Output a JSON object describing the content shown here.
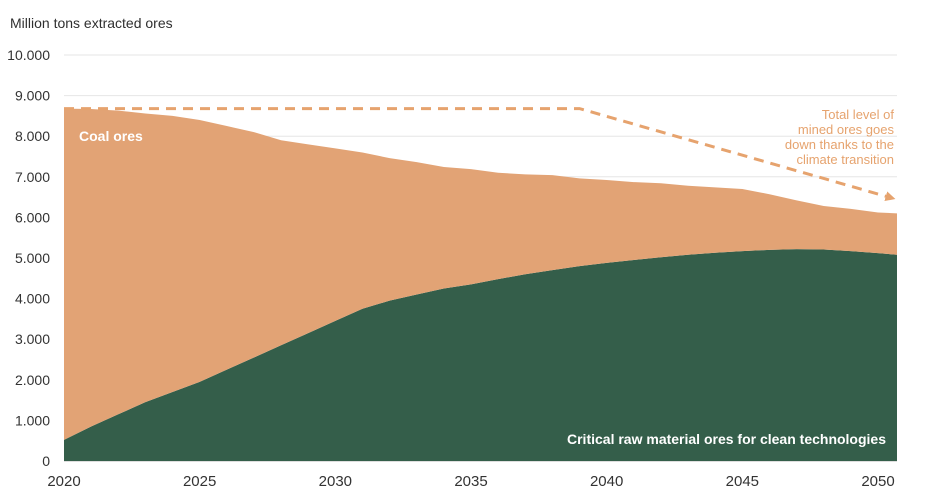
{
  "chart_data": {
    "type": "area",
    "ylabel": "Million tons extracted ores",
    "ylim": [
      0,
      10000
    ],
    "y_ticks": [
      "0",
      "1.000",
      "2.000",
      "3.000",
      "4.000",
      "5.000",
      "6.000",
      "7.000",
      "8.000",
      "9.000",
      "10.000"
    ],
    "xlim": [
      2020,
      2050.7
    ],
    "x_ticks": [
      "2020",
      "2025",
      "2030",
      "2035",
      "2040",
      "2045",
      "2050"
    ],
    "x": [
      2020,
      2021,
      2022,
      2023,
      2024,
      2025,
      2026,
      2027,
      2028,
      2029,
      2030,
      2031,
      2032,
      2033,
      2034,
      2035,
      2036,
      2037,
      2038,
      2039,
      2040,
      2041,
      2042,
      2043,
      2044,
      2045,
      2046,
      2047,
      2048,
      2049,
      2050,
      2050.7
    ],
    "series": [
      {
        "name": "Critical raw material ores for clean technologies",
        "color": "#345e4a",
        "values": [
          520,
          850,
          1150,
          1450,
          1700,
          1950,
          2250,
          2550,
          2850,
          3150,
          3450,
          3750,
          3950,
          4100,
          4250,
          4350,
          4480,
          4600,
          4700,
          4800,
          4880,
          4950,
          5020,
          5080,
          5130,
          5170,
          5200,
          5220,
          5210,
          5170,
          5120,
          5080
        ]
      },
      {
        "name": "Coal ores",
        "color": "#e2a375",
        "values": [
          8160,
          7820,
          7480,
          7110,
          6800,
          6450,
          6000,
          5550,
          5050,
          4650,
          4250,
          3850,
          3510,
          3260,
          2990,
          2840,
          2620,
          2460,
          2340,
          2160,
          2040,
          1920,
          1820,
          1700,
          1610,
          1530,
          1370,
          1200,
          1070,
          1040,
          1000,
          1020
        ]
      }
    ],
    "total_line": {
      "x": [
        2020,
        2039,
        2050.5
      ],
      "y": [
        8680,
        8680,
        6480
      ],
      "style": "dashed",
      "color": "#e6a36e"
    },
    "annotations": {
      "coal_label": "Coal ores",
      "crm_label": "Critical raw material ores for clean technologies",
      "total_note": [
        "Total level of",
        "mined ores goes",
        "down thanks to the",
        "climate transition"
      ]
    },
    "grid": true,
    "legend": "none"
  }
}
